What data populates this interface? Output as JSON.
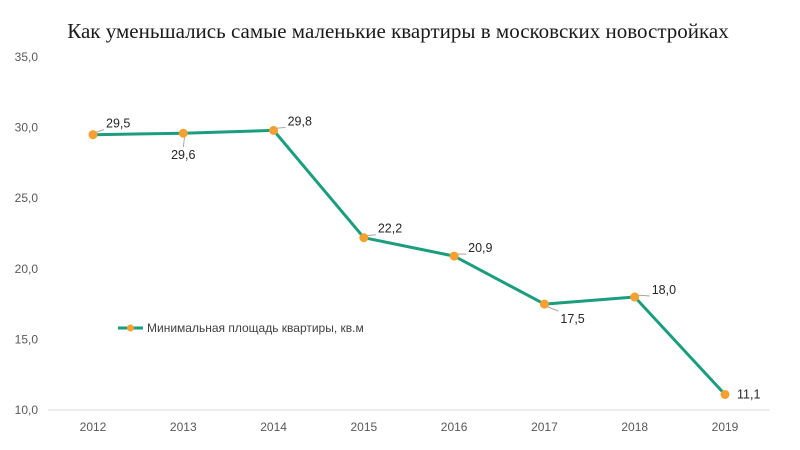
{
  "chart_data": {
    "type": "line",
    "title": "Как уменьшались  самые  маленькие  квартиры  в  московских  новостройках",
    "xlabel": "",
    "ylabel": "",
    "categories": [
      "2012",
      "2013",
      "2014",
      "2015",
      "2016",
      "2017",
      "2018",
      "2019"
    ],
    "y_ticks": [
      "10,0",
      "15,0",
      "20,0",
      "25,0",
      "30,0",
      "35,0"
    ],
    "ylim": [
      10,
      35
    ],
    "grid": false,
    "legend_position": "left-middle",
    "series": [
      {
        "name": "Минимальная площадь квартиры, кв.м",
        "values": [
          29.5,
          29.6,
          29.8,
          22.2,
          20.9,
          17.5,
          18.0,
          11.1
        ],
        "labels": [
          "29,5",
          "29,6",
          "29,8",
          "22,2",
          "20,9",
          "17,5",
          "18,0",
          "11,1"
        ],
        "line_color": "#1a9e7e",
        "marker_color": "#f5a030"
      }
    ]
  }
}
